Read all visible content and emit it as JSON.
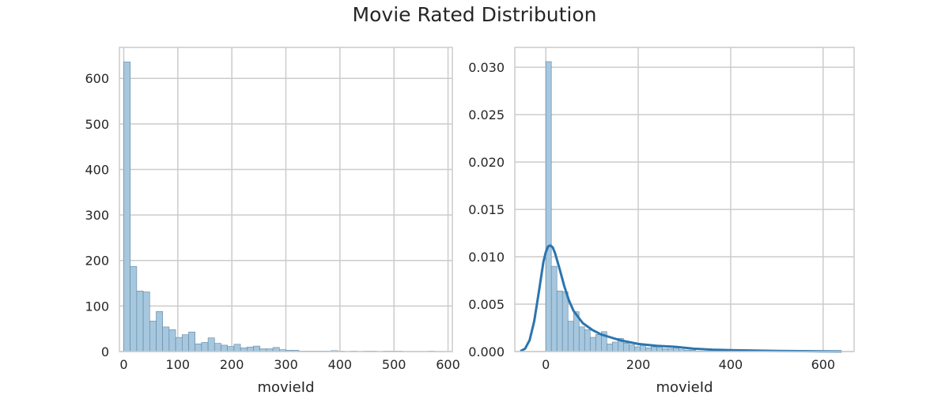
{
  "figure": {
    "title": "Movie Rated Distribution"
  },
  "colors": {
    "bar_fill": "#a6c7de",
    "bar_edge": "#5f86a3",
    "kde": "#2a75ae",
    "grid": "#cccccc",
    "spine": "#cccccc"
  },
  "chart_data": [
    {
      "type": "bar",
      "title": "",
      "xlabel": "movieId",
      "ylabel": "",
      "xlim": [
        -8,
        608
      ],
      "ylim": [
        0,
        668
      ],
      "xticks": [
        0,
        100,
        200,
        300,
        400,
        500,
        600
      ],
      "yticks": [
        0,
        100,
        200,
        300,
        400,
        500,
        600
      ],
      "grid": true,
      "bin_edges": [
        0,
        12,
        24,
        36,
        48,
        60,
        72,
        84,
        96,
        108,
        120,
        132,
        144,
        156,
        168,
        180,
        192,
        204,
        216,
        228,
        240,
        252,
        264,
        276,
        288,
        300,
        312,
        324,
        336,
        348,
        360,
        372,
        384,
        396,
        408,
        420,
        432,
        444,
        456,
        468,
        480,
        492,
        504,
        516,
        528,
        540,
        552,
        564,
        576,
        588
      ],
      "values": [
        636,
        187,
        133,
        131,
        67,
        88,
        54,
        48,
        31,
        37,
        43,
        17,
        20,
        30,
        18,
        14,
        11,
        16,
        8,
        10,
        12,
        6,
        6,
        9,
        4,
        3,
        3,
        1,
        1,
        1,
        1,
        1,
        2,
        1,
        0,
        1,
        0,
        1,
        1,
        0,
        1,
        1,
        1,
        0,
        0,
        0,
        0,
        1,
        0
      ]
    },
    {
      "type": "bar",
      "title": "",
      "xlabel": "movieId",
      "ylabel": "",
      "xlim": [
        -67,
        667
      ],
      "ylim": [
        0,
        0.0321
      ],
      "xticks": [
        0,
        200,
        400,
        600
      ],
      "yticks": [
        0.0,
        0.005,
        0.01,
        0.015,
        0.02,
        0.025,
        0.03
      ],
      "ytick_labels": [
        "0.000",
        "0.005",
        "0.010",
        "0.015",
        "0.020",
        "0.025",
        "0.030"
      ],
      "grid": true,
      "bin_edges": [
        0,
        12,
        24,
        36,
        48,
        60,
        72,
        84,
        96,
        108,
        120,
        132,
        144,
        156,
        168,
        180,
        192,
        204,
        216,
        228,
        240,
        252,
        264,
        276,
        288,
        300,
        312,
        324,
        336,
        348,
        360,
        372,
        384,
        396,
        408,
        420,
        432,
        444,
        456,
        468,
        480,
        492,
        504,
        516,
        528,
        540,
        552,
        564,
        576,
        588
      ],
      "values": [
        0.0306,
        0.009,
        0.0064,
        0.0063,
        0.0032,
        0.0042,
        0.0026,
        0.0023,
        0.0015,
        0.0018,
        0.0021,
        0.0008,
        0.001,
        0.0014,
        0.0009,
        0.0007,
        0.0005,
        0.0008,
        0.0004,
        0.0005,
        0.0006,
        0.0003,
        0.0003,
        0.0004,
        0.0002,
        0.00015,
        0.00015,
        5e-05,
        5e-05,
        5e-05,
        5e-05,
        5e-05,
        0.0001,
        5e-05,
        0,
        5e-05,
        0,
        5e-05,
        5e-05,
        0,
        5e-05,
        5e-05,
        5e-05,
        0,
        0,
        0,
        0,
        5e-05,
        0
      ],
      "kde": {
        "x": [
          -55,
          -45,
          -35,
          -25,
          -15,
          -5,
          0,
          5,
          10,
          15,
          20,
          30,
          40,
          50,
          60,
          80,
          100,
          120,
          140,
          160,
          180,
          200,
          240,
          280,
          320,
          360,
          400,
          450,
          500,
          550,
          600,
          640
        ],
        "y": [
          5e-05,
          0.0003,
          0.0012,
          0.0032,
          0.0063,
          0.0095,
          0.0105,
          0.0111,
          0.0112,
          0.011,
          0.0104,
          0.0087,
          0.0069,
          0.0054,
          0.0043,
          0.003,
          0.0023,
          0.0018,
          0.0015,
          0.0012,
          0.001,
          0.0008,
          0.0006,
          0.0005,
          0.0003,
          0.0002,
          0.00015,
          0.0001,
          7e-05,
          4e-05,
          2e-05,
          1e-05
        ]
      }
    }
  ]
}
